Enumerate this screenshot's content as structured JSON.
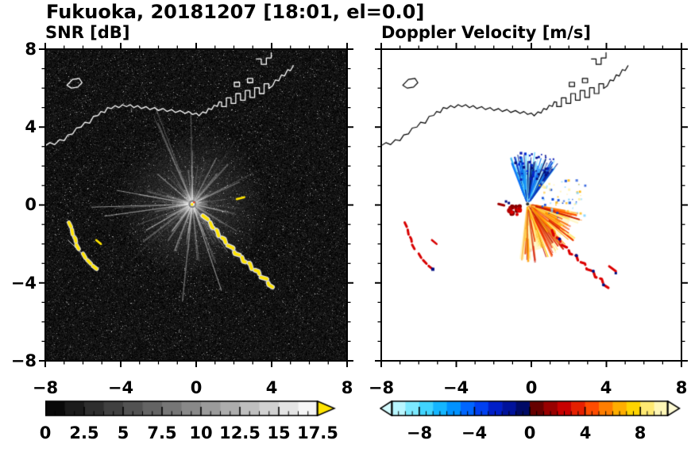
{
  "title": "Fukuoka, 20181207 [18:01, el=0.0]",
  "panels": {
    "snr": {
      "title": "SNR [dB]"
    },
    "velocity": {
      "title": "Doppler Velocity [m/s]"
    }
  },
  "axes": {
    "x_ticks": [
      "−8",
      "−4",
      "0",
      "4",
      "8"
    ],
    "y_ticks": [
      "8",
      "4",
      "0",
      "−4",
      "−8"
    ],
    "major_values": [
      -8,
      -4,
      0,
      4,
      8
    ],
    "minor_step": 1,
    "xlim": [
      -8,
      8
    ],
    "ylim": [
      -8,
      8
    ]
  },
  "colorbars": {
    "snr": {
      "min": 0,
      "max": 17.5,
      "labels": [
        "0",
        "2.5",
        "5",
        "7.5",
        "10",
        "12.5",
        "15",
        "17.5"
      ],
      "colormap": "grayscale",
      "over_arrow_color": "#ffe400"
    },
    "velocity": {
      "min": -10,
      "max": 10,
      "labels": [
        "−8",
        "−4",
        "0",
        "4",
        "8"
      ],
      "colors": [
        "#b8f6ff",
        "#7ce9ff",
        "#40d4ff",
        "#14b6ff",
        "#0092ff",
        "#0066ff",
        "#0040f0",
        "#001ec8",
        "#00129b",
        "#000a66",
        "#660000",
        "#990000",
        "#c80000",
        "#e62000",
        "#ff4c00",
        "#ff7e00",
        "#ffae00",
        "#ffd400",
        "#ffe972",
        "#fff7b6"
      ],
      "arrow_left": "#d4fbff",
      "arrow_right": "#fffbd4"
    }
  },
  "chart_data": {
    "type": "heatmap",
    "title": "Fukuoka, 20181207 [18:01, el=0.0]",
    "x_range": [
      -8,
      8
    ],
    "y_range": [
      -8,
      8
    ],
    "subplots": [
      {
        "title": "SNR [dB]",
        "colorbar_min": 0,
        "colorbar_max": 17.5,
        "features": {
          "center": [
            -0.2,
            0.05
          ],
          "streak_count": 110,
          "bright_ray_count": 18,
          "echo_color": "#ffe400",
          "chain": [
            [
              0.35,
              -0.55
            ],
            [
              0.7,
              -0.8
            ],
            [
              0.85,
              -1.15
            ],
            [
              1.1,
              -1.3
            ],
            [
              1.2,
              -1.6
            ],
            [
              1.5,
              -1.75
            ],
            [
              1.6,
              -2.05
            ],
            [
              1.95,
              -2.2
            ],
            [
              2.05,
              -2.5
            ],
            [
              2.4,
              -2.6
            ],
            [
              2.5,
              -2.9
            ],
            [
              2.85,
              -3.0
            ],
            [
              2.95,
              -3.3
            ],
            [
              3.3,
              -3.4
            ],
            [
              3.4,
              -3.7
            ],
            [
              3.75,
              -3.8
            ],
            [
              3.85,
              -4.1
            ],
            [
              4.1,
              -4.25
            ]
          ],
          "arcs": [
            [
              [
                -6.75,
                -0.9
              ],
              [
                -6.6,
                -1.2
              ],
              [
                -6.55,
                -1.5
              ],
              [
                -6.4,
                -1.75
              ],
              [
                -6.35,
                -2.05
              ],
              [
                -6.2,
                -2.3
              ]
            ],
            [
              [
                -6.0,
                -2.5
              ],
              [
                -5.85,
                -2.75
              ],
              [
                -5.65,
                -2.95
              ],
              [
                -5.45,
                -3.15
              ],
              [
                -5.25,
                -3.3
              ]
            ]
          ],
          "dashes": [
            [
              [
                -5.3,
                -1.8
              ],
              [
                -5.05,
                -2.0
              ]
            ],
            [
              [
                2.15,
                0.3
              ],
              [
                2.55,
                0.4
              ]
            ]
          ],
          "track_line": [
            [
              -6.8,
              -1.8
            ],
            [
              -6.1,
              -2.45
            ]
          ]
        }
      },
      {
        "title": "Doppler Velocity [m/s]",
        "colorbar_min": -10,
        "colorbar_max": 10,
        "features": {
          "center": [
            -0.2,
            0.05
          ],
          "fans": {
            "negative": {
              "a0": 52,
              "a1": 112,
              "rmax": 2.7,
              "palette": [
                "#b0ecff",
                "#72dcff",
                "#34c4ff",
                "#12a0ff",
                "#0a74f8",
                "#0b4ee0",
                "#0b30bc",
                "#071f8e",
                "#041264"
              ]
            },
            "positive": {
              "a0": -98,
              "a1": -10,
              "rmax": 3.1,
              "palette": [
                "#fff8c4",
                "#fff09a",
                "#ffe566",
                "#ffd434",
                "#ffbe0c",
                "#ff9c00",
                "#ff7600",
                "#ff5000",
                "#ea2e00",
                "#c81600"
              ]
            }
          },
          "dark_blue_dots": {
            "a0": 55,
            "a1": 108,
            "r0": 1.3,
            "r1": 2.7,
            "count": 42,
            "colors": [
              "#0a1cb4",
              "#04107e",
              "#0628d2"
            ]
          },
          "speckle_box": {
            "x0": 0.4,
            "x1": 2.9,
            "y0": -0.7,
            "y1": 1.3,
            "count": 70,
            "colors": [
              "#ffef9a",
              "#7fd4ff",
              "#0a46d8",
              "#ffb400"
            ]
          },
          "red_blobs": {
            "cx": -0.9,
            "cy": -0.3,
            "spread": 0.32,
            "count": 16,
            "colors": [
              "#e00000",
              "#b40000",
              "#870000"
            ]
          },
          "navy_dots_left": [
            [
              -1.35,
              0.18
            ],
            [
              -1.2,
              0.1
            ]
          ],
          "maroon_dash": [
            [
              -1.75,
              0.05
            ],
            [
              -1.45,
              -0.02
            ]
          ],
          "chain_color": "#dc0000",
          "chain_start_index": 3,
          "navy_chain_indices": [
            5,
            9,
            13,
            16
          ],
          "extra_dash": [
            [
              4.15,
              -3.15
            ],
            [
              4.5,
              -3.4
            ]
          ],
          "arc_color": "#d80000"
        }
      }
    ],
    "coastline": {
      "paths": [
        [
          [
            -8,
            3.05
          ],
          [
            -7.75,
            3.2
          ],
          [
            -7.5,
            3.1
          ],
          [
            -7.25,
            3.35
          ],
          [
            -7.0,
            3.3
          ],
          [
            -6.8,
            3.6
          ],
          [
            -6.55,
            3.65
          ],
          [
            -6.35,
            3.95
          ],
          [
            -6.1,
            4.0
          ],
          [
            -5.9,
            4.25
          ],
          [
            -5.65,
            4.2
          ],
          [
            -5.45,
            4.55
          ],
          [
            -5.2,
            4.6
          ],
          [
            -5.05,
            4.8
          ],
          [
            -4.85,
            4.75
          ],
          [
            -4.7,
            5.0
          ],
          [
            -4.5,
            4.95
          ],
          [
            -4.3,
            5.1
          ],
          [
            -4.1,
            5.0
          ],
          [
            -3.9,
            5.15
          ],
          [
            -3.7,
            5.05
          ],
          [
            -3.5,
            5.15
          ],
          [
            -3.3,
            5.0
          ],
          [
            -3.1,
            5.1
          ],
          [
            -2.9,
            4.95
          ],
          [
            -2.65,
            5.05
          ],
          [
            -2.45,
            4.9
          ],
          [
            -2.2,
            5.0
          ],
          [
            -2.0,
            4.85
          ],
          [
            -1.75,
            4.95
          ],
          [
            -1.55,
            4.8
          ],
          [
            -1.3,
            4.9
          ],
          [
            -1.1,
            4.75
          ],
          [
            -0.85,
            4.85
          ],
          [
            -0.6,
            4.7
          ],
          [
            -0.4,
            4.8
          ],
          [
            -0.2,
            4.65
          ],
          [
            0.0,
            4.72
          ],
          [
            0.15,
            4.58
          ],
          [
            0.35,
            4.78
          ],
          [
            0.52,
            4.72
          ],
          [
            0.65,
            4.95
          ],
          [
            0.82,
            4.9
          ],
          [
            0.95,
            5.12
          ],
          [
            1.12,
            5.06
          ],
          [
            1.22,
            5.3
          ],
          [
            1.35,
            5.28
          ],
          [
            1.35,
            5.05
          ],
          [
            1.6,
            5.05
          ],
          [
            1.6,
            5.5
          ],
          [
            1.85,
            5.5
          ],
          [
            1.85,
            5.22
          ],
          [
            2.1,
            5.22
          ],
          [
            2.1,
            5.72
          ],
          [
            2.35,
            5.72
          ],
          [
            2.35,
            5.38
          ],
          [
            2.6,
            5.38
          ],
          [
            2.6,
            5.88
          ],
          [
            2.85,
            5.88
          ],
          [
            2.85,
            5.52
          ],
          [
            3.1,
            5.52
          ],
          [
            3.1,
            6.02
          ],
          [
            3.35,
            6.02
          ],
          [
            3.35,
            5.72
          ],
          [
            3.6,
            5.72
          ],
          [
            3.6,
            6.22
          ],
          [
            3.85,
            6.22
          ],
          [
            3.85,
            5.98
          ],
          [
            4.05,
            6.12
          ],
          [
            4.2,
            6.42
          ],
          [
            4.38,
            6.38
          ],
          [
            4.52,
            6.68
          ],
          [
            4.68,
            6.62
          ],
          [
            4.85,
            6.95
          ],
          [
            5.0,
            6.9
          ],
          [
            5.15,
            7.15
          ]
        ],
        [
          [
            -6.85,
            6.15
          ],
          [
            -6.55,
            6.45
          ],
          [
            -6.2,
            6.5
          ],
          [
            -6.05,
            6.28
          ],
          [
            -6.28,
            6.05
          ],
          [
            -6.62,
            6.0
          ],
          [
            -6.85,
            6.15
          ]
        ],
        [
          [
            3.2,
            7.5
          ],
          [
            3.45,
            7.5
          ],
          [
            3.45,
            7.22
          ],
          [
            3.72,
            7.22
          ],
          [
            3.72,
            7.55
          ],
          [
            3.98,
            7.55
          ],
          [
            3.98,
            7.82
          ]
        ],
        [
          [
            2.02,
            6.08
          ],
          [
            2.3,
            6.08
          ],
          [
            2.3,
            6.3
          ],
          [
            2.02,
            6.3
          ],
          [
            2.02,
            6.08
          ]
        ],
        [
          [
            2.72,
            6.28
          ],
          [
            3.0,
            6.28
          ],
          [
            3.0,
            6.5
          ],
          [
            2.72,
            6.5
          ],
          [
            2.72,
            6.28
          ]
        ]
      ]
    }
  }
}
